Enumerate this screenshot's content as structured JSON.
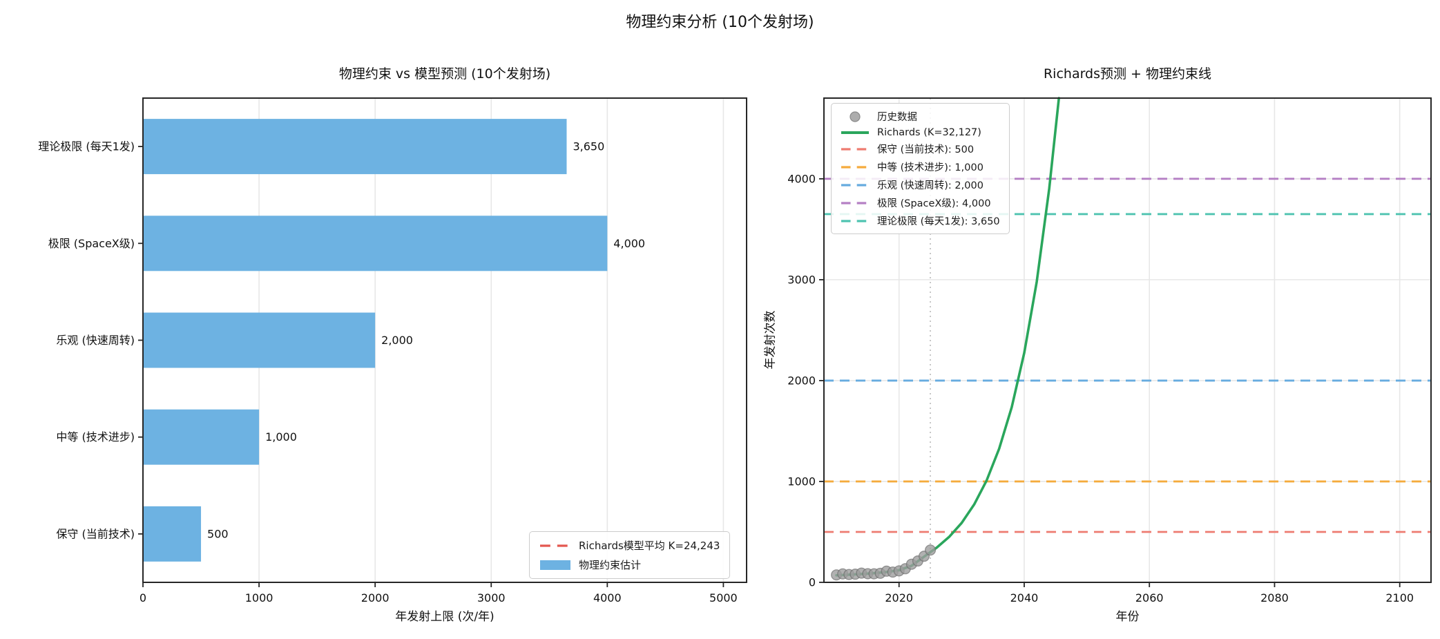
{
  "suptitle": "物理约束分析 (10个发射场)",
  "chart_data": [
    {
      "type": "bar",
      "orientation": "horizontal",
      "title": "物理约束 vs 模型预测 (10个发射场)",
      "xlabel": "年发射上限 (次/年)",
      "categories": [
        "理论极限 (每天1发)",
        "极限 (SpaceX级)",
        "乐观 (快速周转)",
        "中等 (技术进步)",
        "保守 (当前技术)"
      ],
      "values": [
        3650,
        4000,
        2000,
        1000,
        500
      ],
      "value_labels": [
        "3,650",
        "4,000",
        "2,000",
        "1,000",
        "500"
      ],
      "xlim": [
        0,
        5200
      ],
      "xticks": [
        0,
        1000,
        2000,
        3000,
        4000,
        5000
      ],
      "bar_color": "#6db2e2",
      "grid": "vertical",
      "legend_position": "lower right",
      "legend": [
        {
          "label": "Richards模型平均 K=24,243",
          "sample": "dash",
          "color": "#e4574f"
        },
        {
          "label": "物理约束估计",
          "sample": "patch",
          "color": "#6db2e2"
        }
      ]
    },
    {
      "type": "line",
      "title": "Richards预测 + 物理约束线",
      "xlabel": "年份",
      "ylabel": "年发射次数",
      "xlim": [
        2008,
        2105
      ],
      "ylim": [
        0,
        4800
      ],
      "xticks": [
        2020,
        2040,
        2060,
        2080,
        2100
      ],
      "yticks": [
        0,
        1000,
        2000,
        3000,
        4000
      ],
      "grid": "both",
      "legend_position": "upper left",
      "historical": {
        "label": "历史数据",
        "color": "#9e9e9e",
        "edge_color": "#757575",
        "years": [
          2010,
          2011,
          2012,
          2013,
          2014,
          2015,
          2016,
          2017,
          2018,
          2019,
          2020,
          2021,
          2022,
          2023,
          2024,
          2025
        ],
        "values": [
          74,
          84,
          78,
          81,
          92,
          86,
          85,
          90,
          111,
          102,
          114,
          135,
          180,
          212,
          259,
          320
        ]
      },
      "richards": {
        "label": "Richards (K=32,127)",
        "color": "#2aa65c",
        "points": [
          [
            2010,
            70
          ],
          [
            2012,
            76
          ],
          [
            2014,
            83
          ],
          [
            2016,
            91
          ],
          [
            2018,
            103
          ],
          [
            2020,
            120
          ],
          [
            2022,
            165
          ],
          [
            2024,
            255
          ],
          [
            2025,
            300
          ],
          [
            2026,
            343
          ],
          [
            2028,
            450
          ],
          [
            2030,
            589
          ],
          [
            2032,
            772
          ],
          [
            2034,
            1011
          ],
          [
            2036,
            1325
          ],
          [
            2038,
            1736
          ],
          [
            2040,
            2274
          ],
          [
            2042,
            2979
          ],
          [
            2044,
            3903
          ],
          [
            2045.54,
            4800
          ]
        ]
      },
      "constraints": [
        {
          "label": "保守 (当前技术): 500",
          "value": 500,
          "color": "#ee7b70"
        },
        {
          "label": "中等 (技术进步): 1,000",
          "value": 1000,
          "color": "#f5ab3d"
        },
        {
          "label": "乐观 (快速周转): 2,000",
          "value": 2000,
          "color": "#66abdf"
        },
        {
          "label": "极限 (SpaceX级): 4,000",
          "value": 4000,
          "color": "#b57fc4"
        },
        {
          "label": "理论极限 (每天1发): 3,650",
          "value": 3650,
          "color": "#4ec3b0"
        }
      ],
      "current_year_line": {
        "x": 2025,
        "color": "#c1c1c1",
        "style": "dotted"
      }
    }
  ]
}
